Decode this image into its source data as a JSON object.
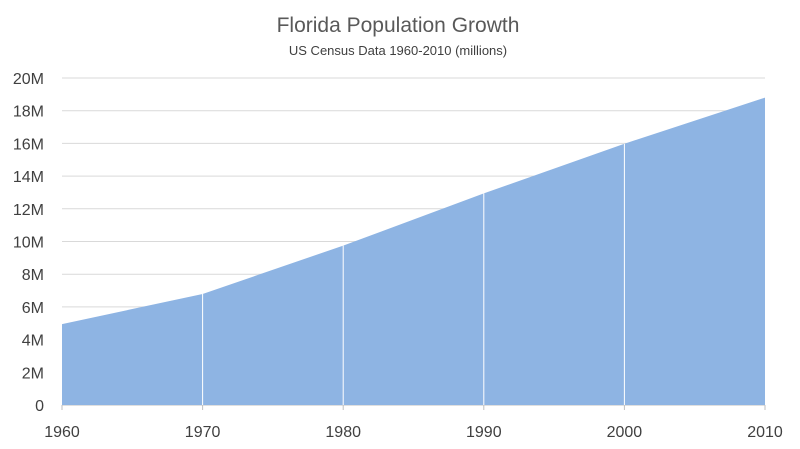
{
  "chart_data": {
    "type": "area",
    "title": "Florida Population Growth",
    "subtitle": "US Census Data 1960-2010 (millions)",
    "x": [
      1960,
      1970,
      1980,
      1990,
      2000,
      2010
    ],
    "xtick_labels": [
      "1960",
      "1970",
      "1980",
      "1990",
      "2000",
      "2010"
    ],
    "series": [
      {
        "values": [
          4.95,
          6.79,
          9.75,
          12.94,
          15.98,
          18.8
        ]
      }
    ],
    "ylim": [
      0,
      20
    ],
    "yticks": [
      0,
      2,
      4,
      6,
      8,
      10,
      12,
      14,
      16,
      18,
      20
    ],
    "ytick_labels": [
      "0",
      "2M",
      "4M",
      "6M",
      "8M",
      "10M",
      "12M",
      "14M",
      "16M",
      "18M",
      "20M"
    ],
    "grid": true,
    "fill_color": "#8eb4e3"
  }
}
